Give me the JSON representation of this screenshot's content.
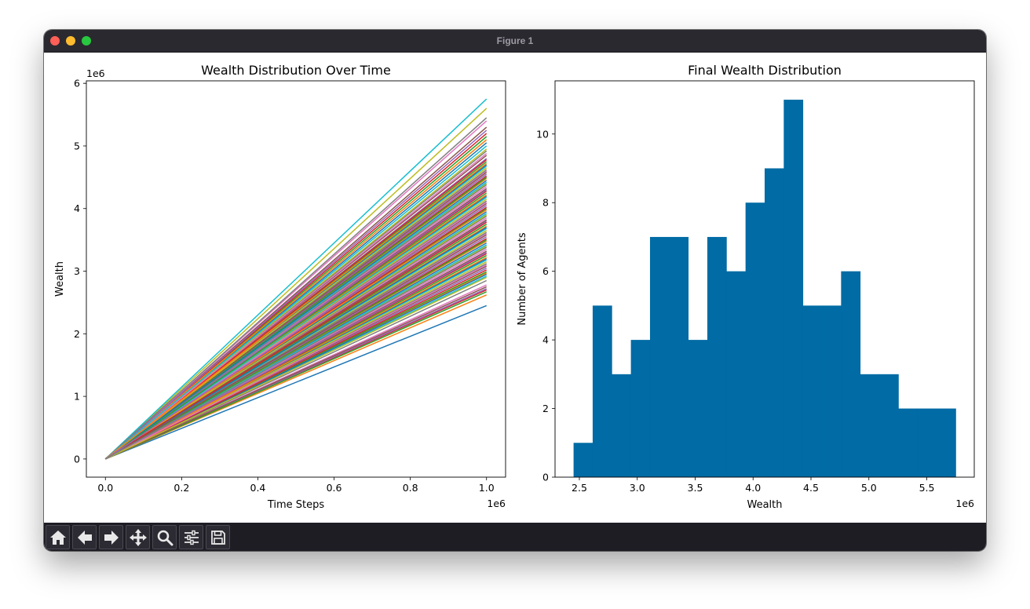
{
  "window": {
    "title": "Figure 1"
  },
  "toolbar": {
    "buttons": [
      {
        "name": "home",
        "icon": "home-icon"
      },
      {
        "name": "back",
        "icon": "arrow-left-icon"
      },
      {
        "name": "forward",
        "icon": "arrow-right-icon"
      },
      {
        "name": "pan",
        "icon": "move-icon"
      },
      {
        "name": "zoom",
        "icon": "magnifier-icon"
      },
      {
        "name": "configure",
        "icon": "sliders-icon"
      },
      {
        "name": "save",
        "icon": "floppy-disk-icon"
      }
    ]
  },
  "colors": {
    "titlebar": "#2b2930",
    "toolbar": "#1f1d24",
    "hist_fill": "#006ba4",
    "line_palette": [
      "#1f77b4",
      "#ff7f0e",
      "#2ca02c",
      "#d62728",
      "#9467bd",
      "#8c564b",
      "#e377c2",
      "#7f7f7f",
      "#bcbd22",
      "#17becf"
    ]
  },
  "chart_data": [
    {
      "type": "line",
      "title": "Wealth Distribution Over Time",
      "xlabel": "Time Steps",
      "ylabel": "Wealth",
      "x_offset_label": "1e6",
      "y_offset_label": "1e6",
      "xlim": [
        -0.05,
        1.05
      ],
      "ylim": [
        -0.29,
        6.04
      ],
      "xticks": [
        0.0,
        0.2,
        0.4,
        0.6,
        0.8,
        1.0
      ],
      "xtick_labels": [
        "0.0",
        "0.2",
        "0.4",
        "0.6",
        "0.8",
        "1.0"
      ],
      "yticks": [
        0,
        1,
        2,
        3,
        4,
        5,
        6
      ],
      "ytick_labels": [
        "0",
        "1",
        "2",
        "3",
        "4",
        "5",
        "6"
      ],
      "x": [
        0,
        1.0
      ],
      "series_note_count": 100,
      "final_values": [
        2.45,
        2.62,
        2.67,
        2.7,
        2.72,
        2.75,
        2.78,
        2.85,
        2.9,
        2.92,
        2.95,
        2.97,
        2.99,
        3.02,
        3.05,
        3.08,
        3.1,
        3.12,
        3.15,
        3.18,
        3.2,
        3.22,
        3.25,
        3.28,
        3.3,
        3.32,
        3.35,
        3.38,
        3.4,
        3.42,
        3.45,
        3.48,
        3.5,
        3.52,
        3.55,
        3.58,
        3.6,
        3.62,
        3.65,
        3.68,
        3.7,
        3.72,
        3.75,
        3.78,
        3.8,
        3.82,
        3.85,
        3.88,
        3.9,
        3.92,
        3.95,
        3.98,
        4.0,
        4.02,
        4.05,
        4.08,
        4.1,
        4.12,
        4.15,
        4.18,
        4.2,
        4.22,
        4.25,
        4.28,
        4.3,
        4.32,
        4.35,
        4.38,
        4.4,
        4.42,
        4.45,
        4.48,
        4.5,
        4.52,
        4.55,
        4.58,
        4.6,
        4.62,
        4.65,
        4.68,
        4.7,
        4.72,
        4.75,
        4.78,
        4.8,
        4.85,
        4.88,
        4.92,
        4.95,
        5.0,
        5.05,
        5.1,
        5.15,
        5.2,
        5.25,
        5.3,
        5.4,
        5.45,
        5.6,
        5.75
      ]
    },
    {
      "type": "bar",
      "title": "Final Wealth Distribution",
      "xlabel": "Wealth",
      "ylabel": "Number of Agents",
      "x_offset_label": "1e6",
      "xlim": [
        2.29,
        5.91
      ],
      "ylim": [
        0,
        11.55
      ],
      "xticks": [
        2.5,
        3.0,
        3.5,
        4.0,
        4.5,
        5.0,
        5.5
      ],
      "xtick_labels": [
        "2.5",
        "3.0",
        "3.5",
        "4.0",
        "4.5",
        "5.0",
        "5.5"
      ],
      "yticks": [
        0,
        2,
        4,
        6,
        8,
        10
      ],
      "ytick_labels": [
        "0",
        "2",
        "4",
        "6",
        "8",
        "10"
      ],
      "bin_edges": [
        2.45,
        2.615,
        2.78,
        2.945,
        3.11,
        3.275,
        3.44,
        3.605,
        3.77,
        3.935,
        4.1,
        4.265,
        4.43,
        4.595,
        4.76,
        4.925,
        5.09,
        5.255,
        5.42,
        5.585,
        5.75
      ],
      "values": [
        1,
        5,
        3,
        4,
        7,
        7,
        4,
        7,
        6,
        8,
        9,
        11,
        5,
        5,
        6,
        3,
        3,
        2,
        2,
        2
      ]
    }
  ]
}
